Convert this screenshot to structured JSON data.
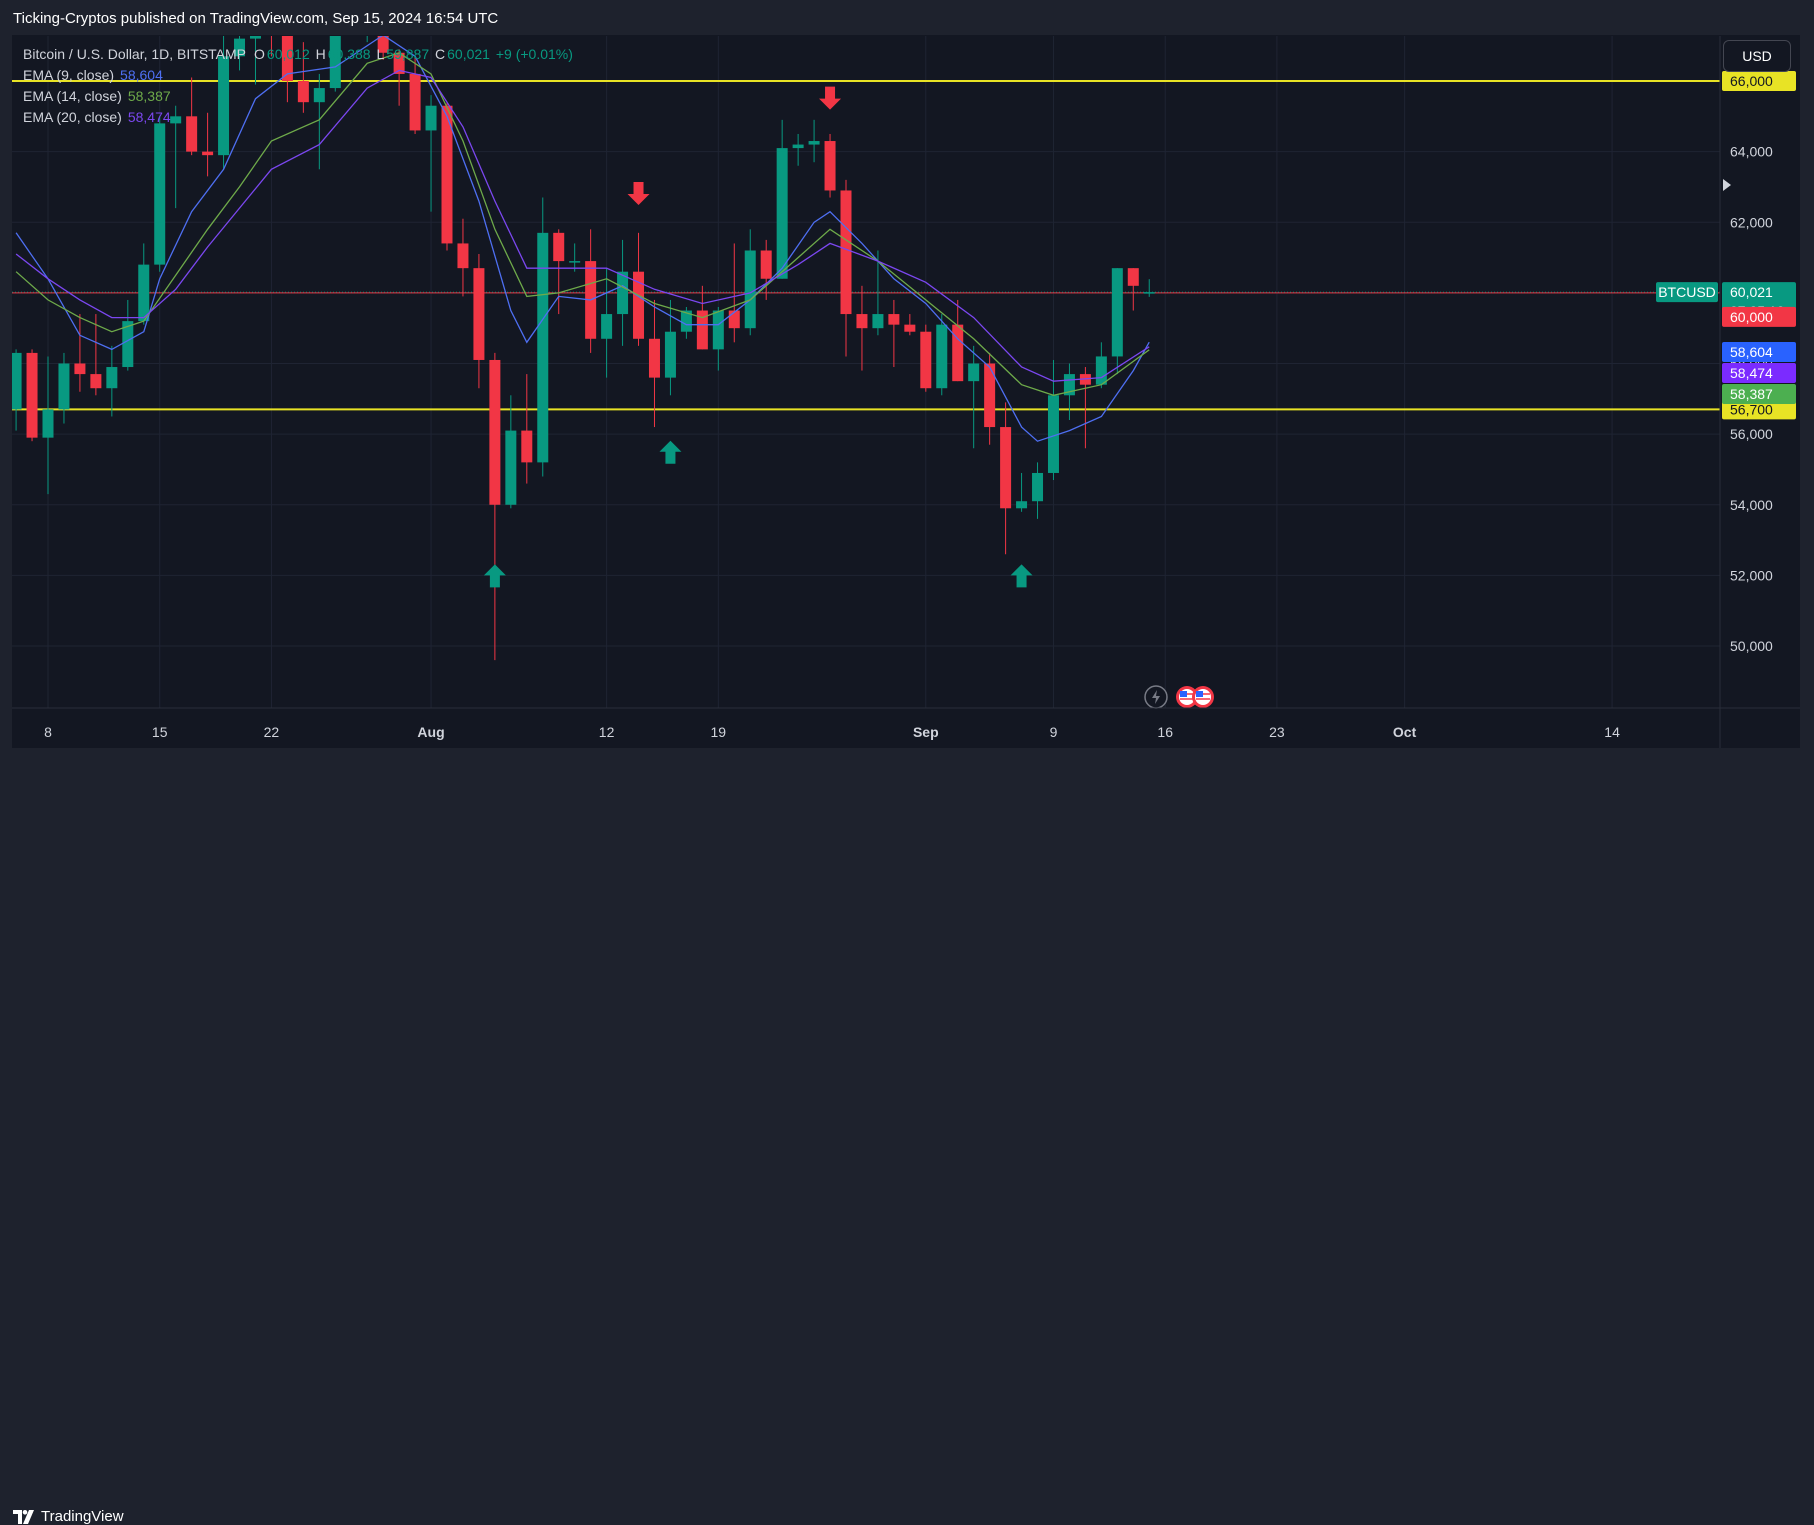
{
  "header": {
    "published": "Ticking-Cryptos published on TradingView.com, Sep 15, 2024 16:54 UTC"
  },
  "footer": {
    "brand": "TradingView"
  },
  "legend": {
    "symbol": "Bitcoin / U.S. Dollar, 1D, BITSTAMP",
    "o_label": "O",
    "o_value": "60,012",
    "h_label": "H",
    "h_value": "60,388",
    "l_label": "L",
    "l_value": "59,887",
    "c_label": "C",
    "c_value": "60,021",
    "change": "+9 (+0.01%)",
    "ema": [
      {
        "label": "EMA (9, close)",
        "value": "58,604"
      },
      {
        "label": "EMA (14, close)",
        "value": "58,387"
      },
      {
        "label": "EMA (20, close)",
        "value": "58,474"
      }
    ]
  },
  "currency_button": "USD",
  "chart_data": {
    "type": "candlestick",
    "interval": "1D",
    "ylim": [
      48000,
      67800
    ],
    "y_ticks": [
      "50,000",
      "52,000",
      "54,000",
      "56,000",
      "58,000",
      "60,000",
      "62,000",
      "64,000",
      "66,000"
    ],
    "x_ticks": [
      {
        "label": "8",
        "date": "2024-07-08"
      },
      {
        "label": "15",
        "date": "2024-07-15"
      },
      {
        "label": "22",
        "date": "2024-07-22"
      },
      {
        "label": "Aug",
        "date": "2024-08-01"
      },
      {
        "label": "12",
        "date": "2024-08-12"
      },
      {
        "label": "19",
        "date": "2024-08-19"
      },
      {
        "label": "Sep",
        "date": "2024-09-01"
      },
      {
        "label": "9",
        "date": "2024-09-09"
      },
      {
        "label": "16",
        "date": "2024-09-16"
      },
      {
        "label": "23",
        "date": "2024-09-23"
      },
      {
        "label": "Oct",
        "date": "2024-10-01"
      },
      {
        "label": "14",
        "date": "2024-10-14"
      }
    ],
    "date_range": [
      "2024-07-06",
      "2024-10-17"
    ],
    "candles": [
      {
        "d": "2024-07-06",
        "o": 56700,
        "h": 58400,
        "l": 56100,
        "c": 58300
      },
      {
        "d": "2024-07-07",
        "o": 58300,
        "h": 58400,
        "l": 55800,
        "c": 55900
      },
      {
        "d": "2024-07-08",
        "o": 55900,
        "h": 58200,
        "l": 54300,
        "c": 56700
      },
      {
        "d": "2024-07-09",
        "o": 56700,
        "h": 58300,
        "l": 56300,
        "c": 58000
      },
      {
        "d": "2024-07-10",
        "o": 58000,
        "h": 59400,
        "l": 57200,
        "c": 57700
      },
      {
        "d": "2024-07-11",
        "o": 57700,
        "h": 59400,
        "l": 57100,
        "c": 57300
      },
      {
        "d": "2024-07-12",
        "o": 57300,
        "h": 58500,
        "l": 56500,
        "c": 57900
      },
      {
        "d": "2024-07-13",
        "o": 57900,
        "h": 59800,
        "l": 57800,
        "c": 59200
      },
      {
        "d": "2024-07-14",
        "o": 59200,
        "h": 61400,
        "l": 59100,
        "c": 60800
      },
      {
        "d": "2024-07-15",
        "o": 60800,
        "h": 65000,
        "l": 60600,
        "c": 64800
      },
      {
        "d": "2024-07-16",
        "o": 64800,
        "h": 65300,
        "l": 62400,
        "c": 65000
      },
      {
        "d": "2024-07-17",
        "o": 65000,
        "h": 66100,
        "l": 63900,
        "c": 64000
      },
      {
        "d": "2024-07-18",
        "o": 64000,
        "h": 65100,
        "l": 63300,
        "c": 63900
      },
      {
        "d": "2024-07-19",
        "o": 63900,
        "h": 67400,
        "l": 63500,
        "c": 66700
      },
      {
        "d": "2024-07-20",
        "o": 66700,
        "h": 67600,
        "l": 66300,
        "c": 67200
      },
      {
        "d": "2024-07-21",
        "o": 67200,
        "h": 68300,
        "l": 65900,
        "c": 68200
      },
      {
        "d": "2024-07-22",
        "o": 68200,
        "h": 68400,
        "l": 66700,
        "c": 67600
      },
      {
        "d": "2024-07-23",
        "o": 67600,
        "h": 67800,
        "l": 65400,
        "c": 66000
      },
      {
        "d": "2024-07-24",
        "o": 66000,
        "h": 67100,
        "l": 65100,
        "c": 65400
      },
      {
        "d": "2024-07-25",
        "o": 65400,
        "h": 66200,
        "l": 63500,
        "c": 65800
      },
      {
        "d": "2024-07-26",
        "o": 65800,
        "h": 68200,
        "l": 65700,
        "c": 67900
      },
      {
        "d": "2024-07-27",
        "o": 67900,
        "h": 69400,
        "l": 67400,
        "c": 68200
      },
      {
        "d": "2024-07-28",
        "o": 68200,
        "h": 68300,
        "l": 67100,
        "c": 68300
      },
      {
        "d": "2024-07-29",
        "o": 68300,
        "h": 70000,
        "l": 66600,
        "c": 66800
      },
      {
        "d": "2024-07-30",
        "o": 66800,
        "h": 66900,
        "l": 65300,
        "c": 66200
      },
      {
        "d": "2024-07-31",
        "o": 66200,
        "h": 66700,
        "l": 64500,
        "c": 64600
      },
      {
        "d": "2024-08-01",
        "o": 64600,
        "h": 65600,
        "l": 62300,
        "c": 65300
      },
      {
        "d": "2024-08-02",
        "o": 65300,
        "h": 65400,
        "l": 61200,
        "c": 61400
      },
      {
        "d": "2024-08-03",
        "o": 61400,
        "h": 62100,
        "l": 59900,
        "c": 60700
      },
      {
        "d": "2024-08-04",
        "o": 60700,
        "h": 61100,
        "l": 57300,
        "c": 58100
      },
      {
        "d": "2024-08-05",
        "o": 58100,
        "h": 58300,
        "l": 49600,
        "c": 54000
      },
      {
        "d": "2024-08-06",
        "o": 54000,
        "h": 57100,
        "l": 53900,
        "c": 56100
      },
      {
        "d": "2024-08-07",
        "o": 56100,
        "h": 57700,
        "l": 54600,
        "c": 55200
      },
      {
        "d": "2024-08-08",
        "o": 55200,
        "h": 62700,
        "l": 54800,
        "c": 61700
      },
      {
        "d": "2024-08-09",
        "o": 61700,
        "h": 61800,
        "l": 59400,
        "c": 60900
      },
      {
        "d": "2024-08-10",
        "o": 60900,
        "h": 61400,
        "l": 60600,
        "c": 60900
      },
      {
        "d": "2024-08-11",
        "o": 60900,
        "h": 61800,
        "l": 58300,
        "c": 58700
      },
      {
        "d": "2024-08-12",
        "o": 58700,
        "h": 60700,
        "l": 57600,
        "c": 59400
      },
      {
        "d": "2024-08-13",
        "o": 59400,
        "h": 61500,
        "l": 58500,
        "c": 60600
      },
      {
        "d": "2024-08-14",
        "o": 60600,
        "h": 61700,
        "l": 58500,
        "c": 58700
      },
      {
        "d": "2024-08-15",
        "o": 58700,
        "h": 59800,
        "l": 56200,
        "c": 57600
      },
      {
        "d": "2024-08-16",
        "o": 57600,
        "h": 59800,
        "l": 57100,
        "c": 58900
      },
      {
        "d": "2024-08-17",
        "o": 58900,
        "h": 59600,
        "l": 58700,
        "c": 59500
      },
      {
        "d": "2024-08-18",
        "o": 59500,
        "h": 60200,
        "l": 58400,
        "c": 58400
      },
      {
        "d": "2024-08-19",
        "o": 58400,
        "h": 59600,
        "l": 57800,
        "c": 59500
      },
      {
        "d": "2024-08-20",
        "o": 59500,
        "h": 61400,
        "l": 58600,
        "c": 59000
      },
      {
        "d": "2024-08-21",
        "o": 59000,
        "h": 61800,
        "l": 58800,
        "c": 61200
      },
      {
        "d": "2024-08-22",
        "o": 61200,
        "h": 61500,
        "l": 59800,
        "c": 60400
      },
      {
        "d": "2024-08-23",
        "o": 60400,
        "h": 64900,
        "l": 60400,
        "c": 64100
      },
      {
        "d": "2024-08-24",
        "o": 64100,
        "h": 64500,
        "l": 63600,
        "c": 64200
      },
      {
        "d": "2024-08-25",
        "o": 64200,
        "h": 64900,
        "l": 63700,
        "c": 64300
      },
      {
        "d": "2024-08-26",
        "o": 64300,
        "h": 64500,
        "l": 62700,
        "c": 62900
      },
      {
        "d": "2024-08-27",
        "o": 62900,
        "h": 63200,
        "l": 58200,
        "c": 59400
      },
      {
        "d": "2024-08-28",
        "o": 59400,
        "h": 60200,
        "l": 57800,
        "c": 59000
      },
      {
        "d": "2024-08-29",
        "o": 59000,
        "h": 61200,
        "l": 58800,
        "c": 59400
      },
      {
        "d": "2024-08-30",
        "o": 59400,
        "h": 59800,
        "l": 57900,
        "c": 59100
      },
      {
        "d": "2024-08-31",
        "o": 59100,
        "h": 59400,
        "l": 58800,
        "c": 58900
      },
      {
        "d": "2024-09-01",
        "o": 58900,
        "h": 59100,
        "l": 57200,
        "c": 57300
      },
      {
        "d": "2024-09-02",
        "o": 57300,
        "h": 59400,
        "l": 57100,
        "c": 59100
      },
      {
        "d": "2024-09-03",
        "o": 59100,
        "h": 59800,
        "l": 57500,
        "c": 57500
      },
      {
        "d": "2024-09-04",
        "o": 57500,
        "h": 58500,
        "l": 55600,
        "c": 58000
      },
      {
        "d": "2024-09-05",
        "o": 58000,
        "h": 58300,
        "l": 55700,
        "c": 56200
      },
      {
        "d": "2024-09-06",
        "o": 56200,
        "h": 56900,
        "l": 52600,
        "c": 53900
      },
      {
        "d": "2024-09-07",
        "o": 53900,
        "h": 54900,
        "l": 53800,
        "c": 54100
      },
      {
        "d": "2024-09-08",
        "o": 54100,
        "h": 55200,
        "l": 53600,
        "c": 54900
      },
      {
        "d": "2024-09-09",
        "o": 54900,
        "h": 58100,
        "l": 54700,
        "c": 57100
      },
      {
        "d": "2024-09-10",
        "o": 57100,
        "h": 58000,
        "l": 56400,
        "c": 57700
      },
      {
        "d": "2024-09-11",
        "o": 57700,
        "h": 57900,
        "l": 55600,
        "c": 57400
      },
      {
        "d": "2024-09-12",
        "o": 57400,
        "h": 58600,
        "l": 57300,
        "c": 58200
      },
      {
        "d": "2024-09-13",
        "o": 58200,
        "h": 60700,
        "l": 57700,
        "c": 60700
      },
      {
        "d": "2024-09-14",
        "o": 60700,
        "h": 60700,
        "l": 59500,
        "c": 60200
      },
      {
        "d": "2024-09-15",
        "o": 60012,
        "h": 60388,
        "l": 59887,
        "c": 60021
      }
    ],
    "ema_series": [
      {
        "name": "EMA (9, close)",
        "color": "#4e6ff2",
        "points": [
          [
            "2024-07-06",
            61700
          ],
          [
            "2024-07-08",
            60400
          ],
          [
            "2024-07-10",
            58800
          ],
          [
            "2024-07-12",
            58400
          ],
          [
            "2024-07-14",
            58900
          ],
          [
            "2024-07-15",
            60400
          ],
          [
            "2024-07-17",
            62300
          ],
          [
            "2024-07-19",
            63500
          ],
          [
            "2024-07-21",
            65500
          ],
          [
            "2024-07-23",
            66200
          ],
          [
            "2024-07-26",
            66400
          ],
          [
            "2024-07-29",
            67300
          ],
          [
            "2024-07-31",
            66700
          ],
          [
            "2024-08-02",
            65000
          ],
          [
            "2024-08-04",
            62600
          ],
          [
            "2024-08-06",
            59500
          ],
          [
            "2024-08-07",
            58600
          ],
          [
            "2024-08-09",
            59900
          ],
          [
            "2024-08-11",
            59800
          ],
          [
            "2024-08-13",
            60200
          ],
          [
            "2024-08-15",
            59600
          ],
          [
            "2024-08-17",
            59100
          ],
          [
            "2024-08-19",
            59100
          ],
          [
            "2024-08-21",
            59800
          ],
          [
            "2024-08-23",
            60700
          ],
          [
            "2024-08-25",
            62000
          ],
          [
            "2024-08-26",
            62300
          ],
          [
            "2024-08-28",
            61400
          ],
          [
            "2024-08-30",
            60400
          ],
          [
            "2024-09-01",
            59700
          ],
          [
            "2024-09-03",
            58700
          ],
          [
            "2024-09-05",
            57900
          ],
          [
            "2024-09-07",
            56200
          ],
          [
            "2024-09-08",
            55800
          ],
          [
            "2024-09-10",
            56100
          ],
          [
            "2024-09-12",
            56500
          ],
          [
            "2024-09-14",
            57800
          ],
          [
            "2024-09-15",
            58604
          ]
        ]
      },
      {
        "name": "EMA (14, close)",
        "color": "#6eaa4a",
        "points": [
          [
            "2024-07-06",
            60600
          ],
          [
            "2024-07-08",
            59800
          ],
          [
            "2024-07-10",
            59300
          ],
          [
            "2024-07-12",
            58900
          ],
          [
            "2024-07-14",
            59200
          ],
          [
            "2024-07-16",
            60500
          ],
          [
            "2024-07-18",
            61800
          ],
          [
            "2024-07-20",
            63000
          ],
          [
            "2024-07-22",
            64300
          ],
          [
            "2024-07-25",
            64900
          ],
          [
            "2024-07-28",
            66500
          ],
          [
            "2024-07-30",
            66800
          ],
          [
            "2024-08-01",
            66200
          ],
          [
            "2024-08-03",
            64300
          ],
          [
            "2024-08-05",
            61800
          ],
          [
            "2024-08-07",
            59900
          ],
          [
            "2024-08-09",
            60000
          ],
          [
            "2024-08-12",
            60400
          ],
          [
            "2024-08-15",
            59700
          ],
          [
            "2024-08-18",
            59300
          ],
          [
            "2024-08-21",
            59800
          ],
          [
            "2024-08-24",
            61000
          ],
          [
            "2024-08-26",
            61800
          ],
          [
            "2024-08-29",
            60900
          ],
          [
            "2024-09-01",
            59800
          ],
          [
            "2024-09-04",
            58700
          ],
          [
            "2024-09-07",
            57400
          ],
          [
            "2024-09-09",
            57100
          ],
          [
            "2024-09-12",
            57400
          ],
          [
            "2024-09-15",
            58387
          ]
        ]
      },
      {
        "name": "EMA (20, close)",
        "color": "#7b47f0",
        "points": [
          [
            "2024-07-06",
            61100
          ],
          [
            "2024-07-08",
            60400
          ],
          [
            "2024-07-10",
            59800
          ],
          [
            "2024-07-12",
            59300
          ],
          [
            "2024-07-14",
            59300
          ],
          [
            "2024-07-16",
            60100
          ],
          [
            "2024-07-18",
            61300
          ],
          [
            "2024-07-20",
            62400
          ],
          [
            "2024-07-22",
            63500
          ],
          [
            "2024-07-25",
            64200
          ],
          [
            "2024-07-28",
            65800
          ],
          [
            "2024-07-30",
            66300
          ],
          [
            "2024-08-01",
            66100
          ],
          [
            "2024-08-03",
            64700
          ],
          [
            "2024-08-05",
            62600
          ],
          [
            "2024-08-07",
            60700
          ],
          [
            "2024-08-09",
            60700
          ],
          [
            "2024-08-12",
            60700
          ],
          [
            "2024-08-15",
            60100
          ],
          [
            "2024-08-18",
            59700
          ],
          [
            "2024-08-21",
            60000
          ],
          [
            "2024-08-24",
            60800
          ],
          [
            "2024-08-26",
            61400
          ],
          [
            "2024-08-29",
            60900
          ],
          [
            "2024-09-01",
            60300
          ],
          [
            "2024-09-04",
            59300
          ],
          [
            "2024-09-07",
            57900
          ],
          [
            "2024-09-09",
            57500
          ],
          [
            "2024-09-12",
            57600
          ],
          [
            "2024-09-15",
            58474
          ]
        ]
      }
    ],
    "horizontal_levels": [
      {
        "value": 66000,
        "color": "#e8e325",
        "label": "66,000",
        "label_text_color": "#131722"
      },
      {
        "value": 56700,
        "color": "#e8e325",
        "label": "56,700",
        "label_text_color": "#131722"
      },
      {
        "value": 60000,
        "color": "#f23645",
        "label": "60,000",
        "label_text_color": "#ffffff"
      }
    ],
    "last_price": {
      "symbol": "BTCUSD",
      "value": 60021,
      "label": "60,021",
      "countdown": "07:05:19",
      "color": "#089981"
    },
    "ema_price_labels": [
      {
        "label": "58,604",
        "value": 58604,
        "color": "#2962ff"
      },
      {
        "label": "58,474",
        "value": 58474,
        "color": "#7b2bff"
      },
      {
        "label": "58,387",
        "value": 58387,
        "color": "#4caf50"
      }
    ],
    "signals": [
      {
        "type": "buy",
        "date": "2024-08-05",
        "value": 52000
      },
      {
        "type": "buy",
        "date": "2024-08-16",
        "value": 55500
      },
      {
        "type": "buy",
        "date": "2024-09-07",
        "value": 52000
      },
      {
        "type": "sell",
        "date": "2024-08-14",
        "value": 62800
      },
      {
        "type": "sell",
        "date": "2024-08-26",
        "value": 65500
      }
    ],
    "colors": {
      "up": "#089981",
      "down": "#f23645",
      "background": "#131722",
      "grid": "#1f2433",
      "text": "#d1d4dc"
    }
  }
}
